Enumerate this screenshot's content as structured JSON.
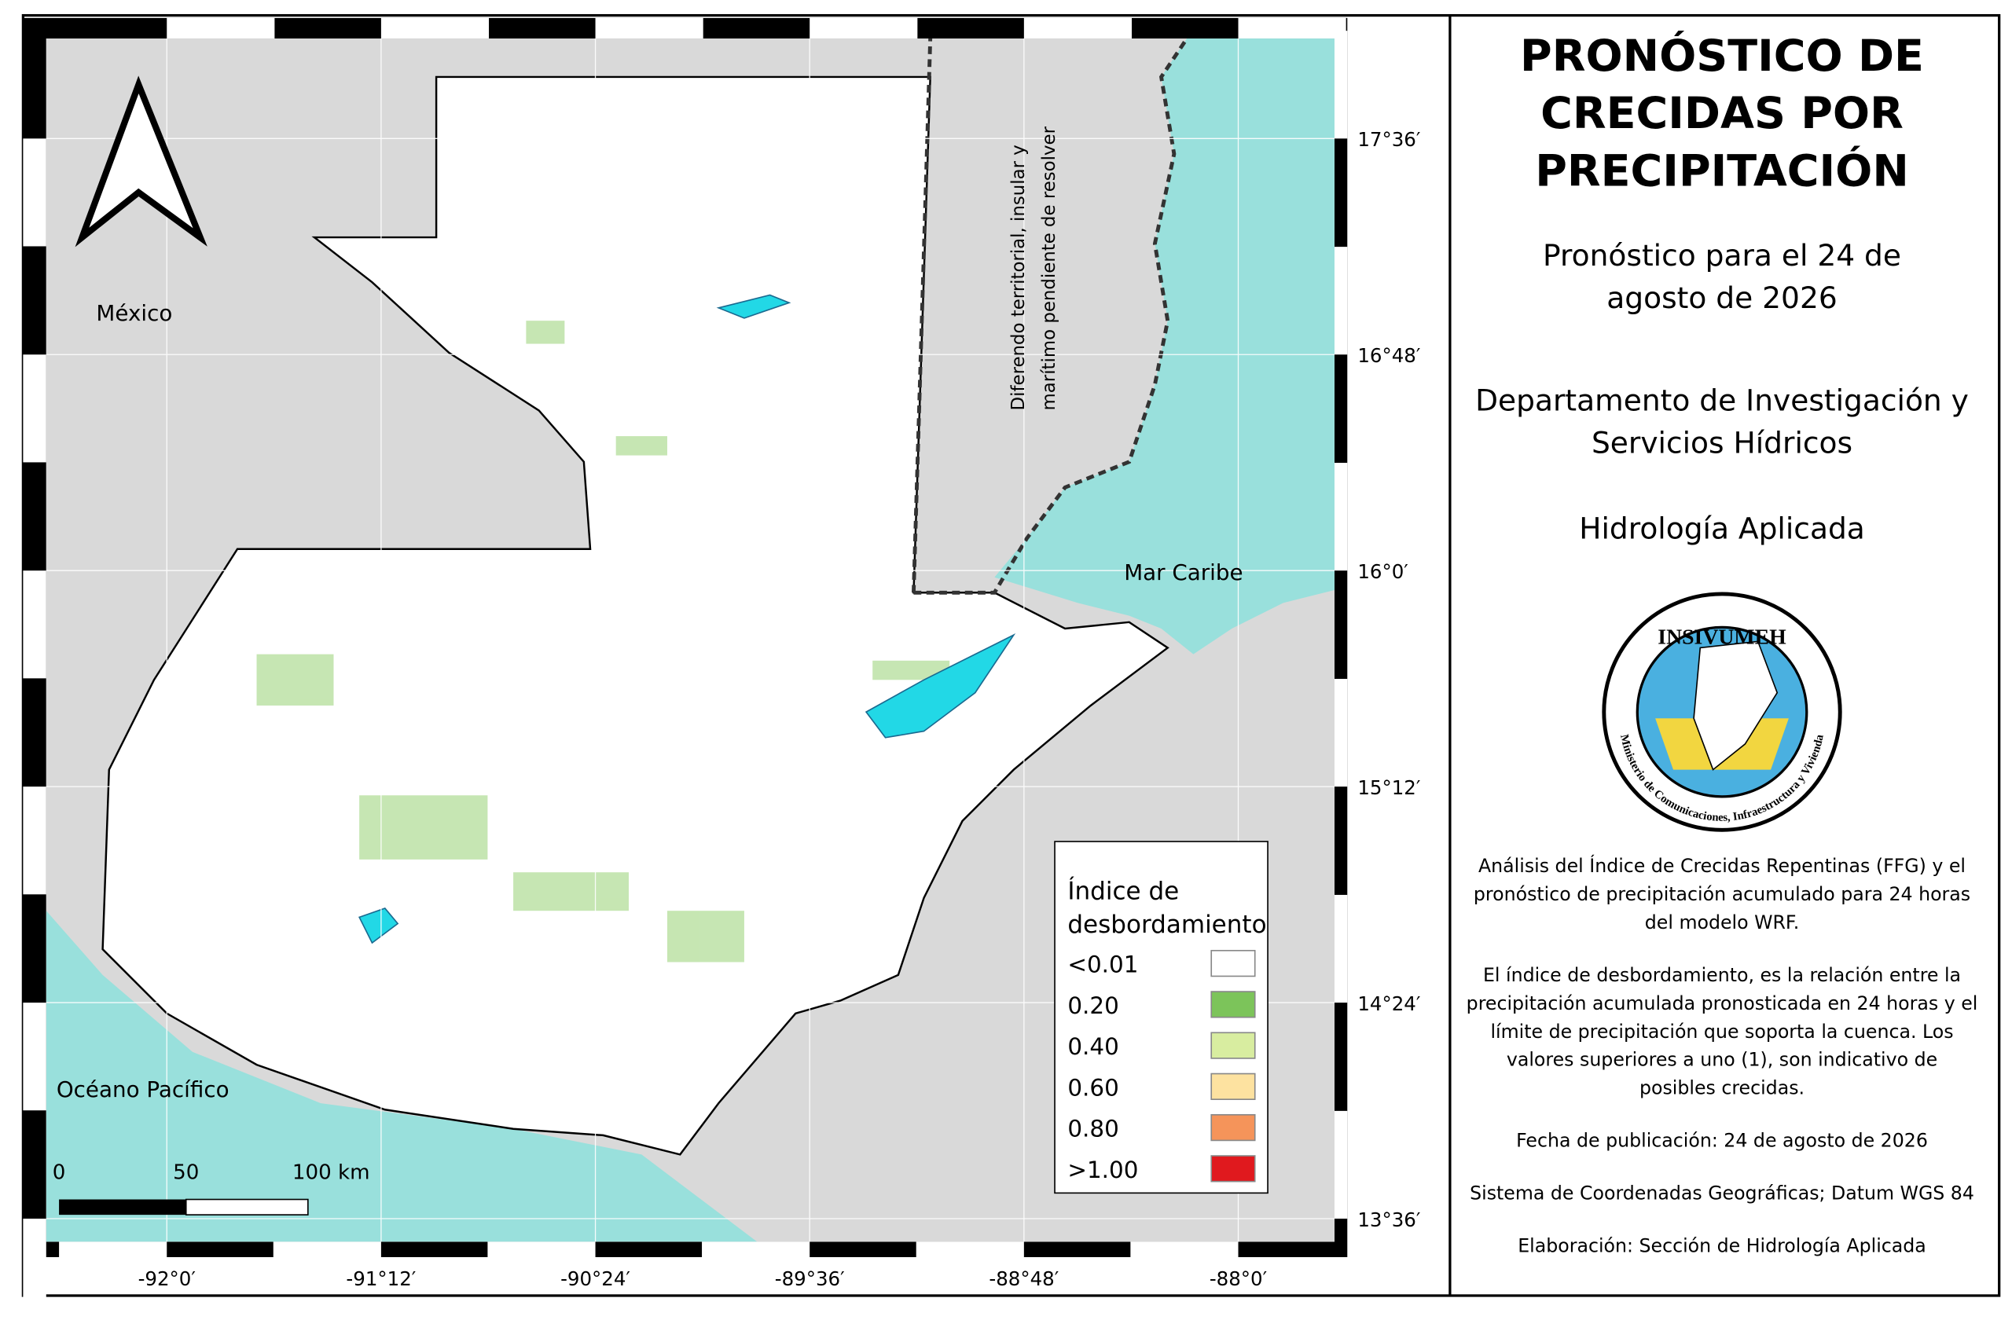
{
  "map": {
    "labels": {
      "mexico": "México",
      "caribbean": "Mar Caribe",
      "pacific": "Océano Pacífico",
      "disputed": [
        "Diferendo territorial, insular y",
        "marítimo pendiente de resolver"
      ]
    },
    "lat_ticks": [
      "17°36′",
      "16°48′",
      "16°0′",
      "15°12′",
      "14°24′",
      "13°36′"
    ],
    "lon_ticks": [
      "-92°0′",
      "-91°12′",
      "-90°24′",
      "-89°36′",
      "-88°48′",
      "-88°0′"
    ],
    "scale_bar": [
      "0",
      "50",
      "100 km"
    ],
    "legend": {
      "title": [
        "Índice de",
        "desbordamiento"
      ],
      "items": [
        {
          "label": "<0.01",
          "color": "#ffffff"
        },
        {
          "label": "0.20",
          "color": "#7cc45a"
        },
        {
          "label": "0.40",
          "color": "#d8eda0"
        },
        {
          "label": "0.60",
          "color": "#fde2a0"
        },
        {
          "label": "0.80",
          "color": "#f5945a"
        },
        {
          "label": ">1.00",
          "color": "#e0191e"
        }
      ]
    }
  },
  "panel": {
    "title": [
      "PRONÓSTICO DE",
      "CRECIDAS POR",
      "PRECIPITACIÓN"
    ],
    "forecast": [
      "Pronóstico para el 24 de",
      "agosto de 2026"
    ],
    "department": [
      "Departamento de Investigación y",
      "Servicios Hídricos"
    ],
    "section": "Hidrología Aplicada",
    "logo": {
      "name": "INSIVUMEH",
      "ring": "Ministerio de Comunicaciones, Infraestructura y Vivienda"
    },
    "notes": [
      [
        "Análisis del Índice de Crecidas Repentinas (FFG) y el",
        "pronóstico de precipitación acumulado para 24 horas",
        "del modelo WRF."
      ],
      [
        "El índice de desbordamiento, es la relación entre la",
        "precipitación acumulada pronosticada en 24 horas y el",
        "límite de precipitación que soporta la cuenca. Los",
        "valores superiores a uno (1), son indicativo de",
        "posibles crecidas."
      ],
      [
        "Fecha de publicación: 24 de agosto de 2026"
      ],
      [
        "Sistema de Coordenadas Geográficas; Datum WGS 84"
      ],
      [
        "Elaboración: Sección de Hidrología Aplicada"
      ]
    ]
  }
}
